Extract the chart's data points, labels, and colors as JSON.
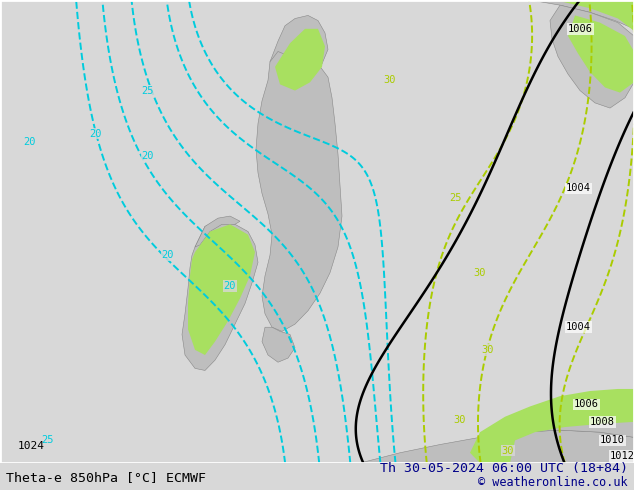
{
  "title_left": "Theta-e 850hPa [°C] ECMWF",
  "title_right": "Th 30-05-2024 06:00 UTC (18+84)",
  "copyright": "© weatheronline.co.uk",
  "fig_width": 6.34,
  "fig_height": 4.9,
  "dpi": 100,
  "title_fontsize": 9.5,
  "copyright_fontsize": 8.5,
  "sea_color": "#d8d8d8",
  "land_color": "#bebebe",
  "green_color": "#a8e060",
  "cyan_color": "#00ccdd",
  "yg_color": "#aacc00",
  "black_color": "#000000",
  "label_bg": "#ffffff"
}
